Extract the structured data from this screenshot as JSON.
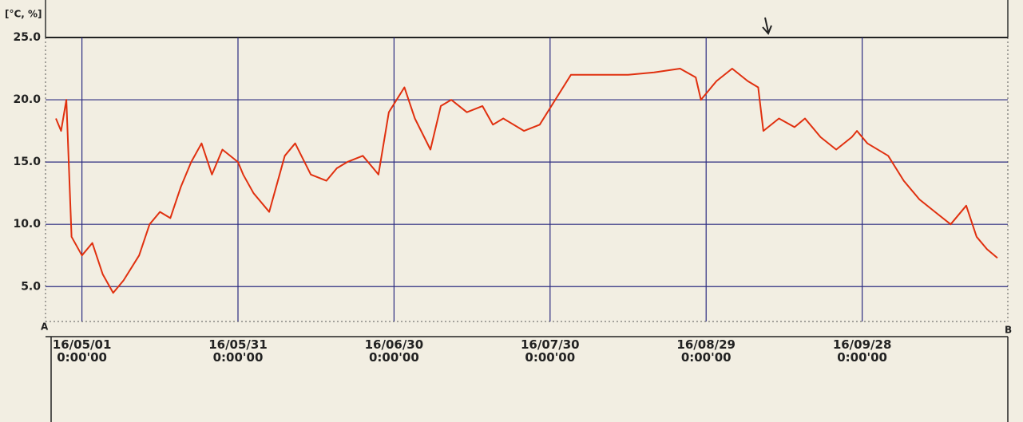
{
  "chart_data": {
    "type": "line",
    "y_label": "[°C, %]",
    "annotations": [
      "A",
      "B"
    ],
    "xlim": [
      "16/04/24",
      "16/10/26"
    ],
    "xticks": [
      {
        "value": "16/05/01",
        "label": "16/05/01\n0:00'00"
      },
      {
        "value": "16/05/31",
        "label": "16/05/31\n0:00'00"
      },
      {
        "value": "16/06/30",
        "label": "16/06/30\n0:00'00"
      },
      {
        "value": "16/07/30",
        "label": "16/07/30\n0:00'00"
      },
      {
        "value": "16/08/29",
        "label": "16/08/29\n0:00'00"
      },
      {
        "value": "16/09/28",
        "label": "16/09/28\n0:00'00"
      }
    ],
    "ylim": [
      2.2,
      25
    ],
    "yticks": [
      {
        "value": 5,
        "label": "5.0"
      },
      {
        "value": 10,
        "label": "10.0"
      },
      {
        "value": 15,
        "label": "15.0"
      },
      {
        "value": 20,
        "label": "20.0"
      },
      {
        "value": 25,
        "label": "25.0"
      }
    ],
    "grid": true,
    "x": [
      "16/04/26",
      "16/04/27",
      "16/04/28",
      "16/04/29",
      "16/05/01",
      "16/05/03",
      "16/05/05",
      "16/05/07",
      "16/05/09",
      "16/05/12",
      "16/05/14",
      "16/05/16",
      "16/05/18",
      "16/05/20",
      "16/05/22",
      "16/05/24",
      "16/05/26",
      "16/05/28",
      "16/05/31",
      "16/06/01",
      "16/06/03",
      "16/06/05",
      "16/06/06",
      "16/06/08",
      "16/06/09",
      "16/06/11",
      "16/06/14",
      "16/06/17",
      "16/06/19",
      "16/06/21",
      "16/06/24",
      "16/06/26",
      "16/06/27",
      "16/06/29",
      "16/07/02",
      "16/07/04",
      "16/07/07",
      "16/07/09",
      "16/07/11",
      "16/07/14",
      "16/07/17",
      "16/07/19",
      "16/07/21",
      "16/07/25",
      "16/07/28",
      "16/07/31",
      "16/08/03",
      "16/08/06",
      "16/08/10",
      "16/08/14",
      "16/08/19",
      "16/08/24",
      "16/08/27",
      "16/08/28",
      "16/08/31",
      "16/09/03",
      "16/09/06",
      "16/09/08",
      "16/09/09",
      "16/09/12",
      "16/09/15",
      "16/09/17",
      "16/09/20",
      "16/09/23",
      "16/09/26",
      "16/09/27",
      "16/09/29",
      "16/10/03",
      "16/10/06",
      "16/10/09",
      "16/10/12",
      "16/10/15",
      "16/10/18",
      "16/10/20",
      "16/10/22",
      "16/10/24"
    ],
    "series": [
      {
        "color": "#e0300f",
        "values": [
          18.5,
          17.5,
          20.0,
          9.0,
          7.5,
          8.5,
          6.0,
          4.5,
          5.5,
          7.5,
          10.0,
          11,
          10.5,
          13,
          15,
          16.5,
          14,
          16,
          15,
          14,
          12.5,
          11.5,
          11,
          14,
          15.5,
          16.5,
          14,
          13.5,
          14.5,
          15,
          15.5,
          14.5,
          14,
          19,
          21,
          18.5,
          16,
          19.5,
          20,
          19,
          19.5,
          18,
          18.5,
          17.5,
          18,
          20,
          22,
          22,
          22,
          22,
          22.2,
          22.5,
          21.8,
          20,
          21.5,
          22.5,
          21.5,
          21,
          17.5,
          18.5,
          17.8,
          18.5,
          17,
          16,
          17,
          17.5,
          16.5,
          15.5,
          13.5,
          12,
          11,
          10,
          11.5,
          9,
          8,
          7.3
        ]
      }
    ]
  }
}
